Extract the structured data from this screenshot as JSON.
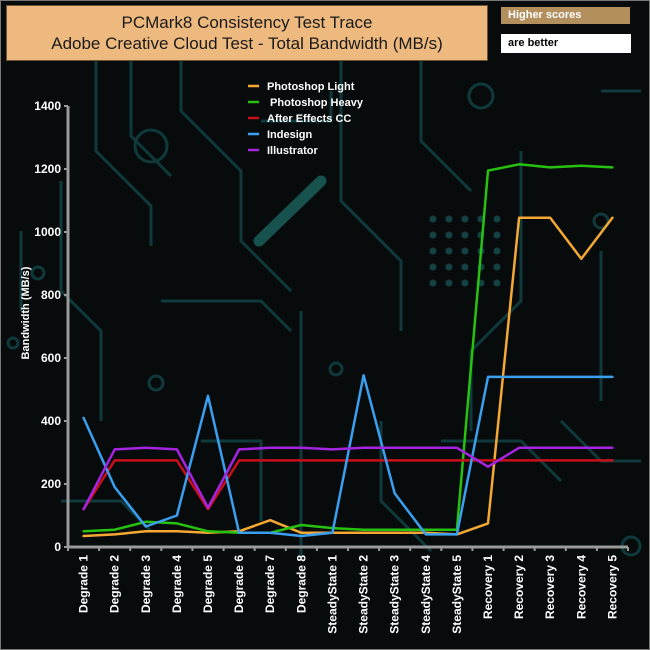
{
  "header": {
    "title_line1": "PCMark8 Consistency Test Trace",
    "title_line2": "Adobe Creative Cloud Test - Total Bandwidth (MB/s)",
    "note_top": "Higher scores",
    "note_bottom": "are better"
  },
  "colors": {
    "background": "#070b0c",
    "circuit": "#10393b",
    "axis": "#9a9a9a",
    "title_box": "#eeb97e",
    "note_box": "#b38f5e"
  },
  "chart_data": {
    "type": "line",
    "title": "PCMark8 Consistency Test Trace",
    "subtitle": "Adobe Creative Cloud Test - Total Bandwidth (MB/s)",
    "xlabel": "",
    "ylabel": "Bandwidth (MB/s)",
    "ylim": [
      0,
      1400
    ],
    "yticks": [
      0,
      200,
      400,
      600,
      800,
      1000,
      1200,
      1400
    ],
    "grid": false,
    "legend_position": "top-center",
    "categories": [
      "Degrade 1",
      "Degrade 2",
      "Degrade 3",
      "Degrade 4",
      "Degrade 5",
      "Degrade 6",
      "Degrade 7",
      "Degrade 8",
      "SteadyState 1",
      "SteadyState 2",
      "SteadyState 3",
      "SteadyState 4",
      "SteadyState 5",
      "Recovery 1",
      "Recovery 2",
      "Recovery 3",
      "Recovery 4",
      "Recovery 5"
    ],
    "series": [
      {
        "name": "Photoshop Light",
        "color": "#f5a833",
        "values": [
          35,
          40,
          50,
          50,
          45,
          50,
          85,
          45,
          45,
          45,
          45,
          45,
          40,
          75,
          1045,
          1045,
          915,
          1045
        ]
      },
      {
        "name": " Photoshop Heavy",
        "color": "#27c20f",
        "values": [
          50,
          55,
          80,
          75,
          50,
          45,
          45,
          70,
          60,
          55,
          55,
          55,
          55,
          1195,
          1215,
          1205,
          1210,
          1205
        ]
      },
      {
        "name": "After Effects CC",
        "color": "#c8101a",
        "values": [
          120,
          275,
          275,
          275,
          120,
          275,
          275,
          275,
          275,
          275,
          275,
          275,
          275,
          275,
          275,
          275,
          275,
          275
        ]
      },
      {
        "name": "Indesign",
        "color": "#3a9fef",
        "values": [
          410,
          190,
          65,
          100,
          480,
          45,
          45,
          35,
          45,
          545,
          170,
          40,
          40,
          540,
          540,
          540,
          540,
          540
        ]
      },
      {
        "name": "Illustrator",
        "color": "#a524e0",
        "values": [
          120,
          310,
          315,
          310,
          125,
          310,
          315,
          315,
          310,
          315,
          315,
          315,
          315,
          255,
          315,
          315,
          315,
          315
        ]
      }
    ]
  }
}
